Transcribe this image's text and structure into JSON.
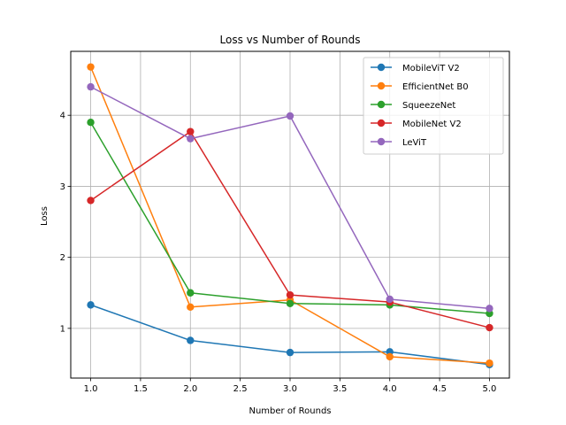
{
  "chart_data": {
    "type": "line",
    "title": "Loss vs Number of Rounds",
    "xlabel": "Number of Rounds",
    "ylabel": "Loss",
    "xlim": [
      0.8,
      5.2
    ],
    "ylim": [
      0.3,
      4.9
    ],
    "xticks": [
      1.0,
      1.5,
      2.0,
      2.5,
      3.0,
      3.5,
      4.0,
      4.5,
      5.0
    ],
    "xtick_labels": [
      "1.0",
      "1.5",
      "2.0",
      "2.5",
      "3.0",
      "3.5",
      "4.0",
      "4.5",
      "5.0"
    ],
    "yticks": [
      1,
      2,
      3,
      4
    ],
    "ytick_labels": [
      "1",
      "2",
      "3",
      "4"
    ],
    "grid": true,
    "legend": "top-right",
    "x": [
      1,
      2,
      3,
      4,
      5
    ],
    "series": [
      {
        "name": "MobileViT V2",
        "color": "#1f77b4",
        "values": [
          1.33,
          0.83,
          0.66,
          0.67,
          0.49
        ]
      },
      {
        "name": "EfficientNet B0",
        "color": "#ff7f0e",
        "values": [
          4.68,
          1.3,
          1.4,
          0.6,
          0.51
        ]
      },
      {
        "name": "SqueezeNet",
        "color": "#2ca02c",
        "values": [
          3.9,
          1.5,
          1.35,
          1.33,
          1.21
        ]
      },
      {
        "name": "MobileNet V2",
        "color": "#d62728",
        "values": [
          2.8,
          3.77,
          1.47,
          1.37,
          1.01
        ]
      },
      {
        "name": "LeViT",
        "color": "#9467bd",
        "values": [
          4.4,
          3.67,
          3.99,
          1.41,
          1.28
        ]
      }
    ]
  }
}
